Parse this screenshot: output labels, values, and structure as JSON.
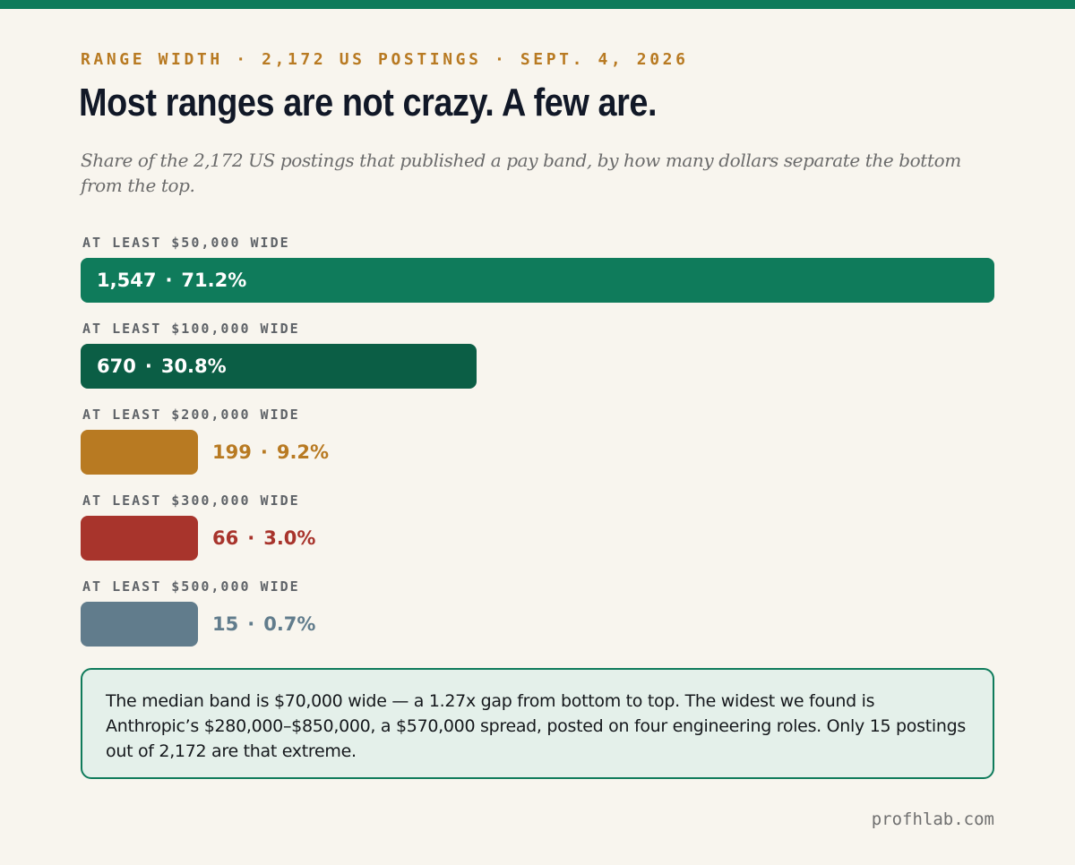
{
  "header": {
    "kicker": "RANGE WIDTH · 2,172 US POSTINGS · SEPT. 4, 2026",
    "title": "Most ranges are not crazy. A few are.",
    "subtitle": "Share of the 2,172 US postings that published a pay band, by how many dollars separate the bottom from the top."
  },
  "chart_data": {
    "type": "bar",
    "orientation": "horizontal",
    "categories": [
      "AT LEAST $50,000 WIDE",
      "AT LEAST $100,000 WIDE",
      "AT LEAST $200,000 WIDE",
      "AT LEAST $300,000 WIDE",
      "AT LEAST $500,000 WIDE"
    ],
    "values": [
      1547,
      670,
      199,
      66,
      15
    ],
    "percent_labels": [
      "71.2%",
      "30.8%",
      "9.2%",
      "3.0%",
      "0.7%"
    ],
    "count_labels": [
      "1,547",
      "670",
      "199",
      "66",
      "15"
    ],
    "colors": [
      "#0f7b5b",
      "#0b5e45",
      "#b87a22",
      "#a8342c",
      "#617c8c"
    ],
    "xlim": [
      0,
      1547
    ],
    "grid": false
  },
  "note": "The median band is $70,000 wide — a 1.27x gap from bottom to top. The widest we found is Anthropic’s $280,000–$850,000, a $570,000 spread, posted on four engineering roles. Only 15 postings out of 2,172 are that extreme.",
  "footer": "profhlab.com"
}
